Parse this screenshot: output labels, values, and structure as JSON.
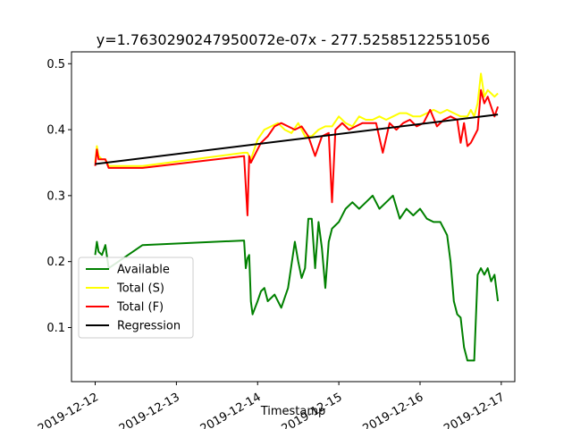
{
  "chart_data": {
    "type": "line",
    "title": "y=1.7630290247950072e-07x - 277.52585122551056",
    "xlabel": "Timestamp",
    "ylabel": "",
    "xlim": [
      "2019-12-11T17:00",
      "2019-12-17T04:00"
    ],
    "ylim": [
      0.018,
      0.518
    ],
    "x_ticks": [
      "2019-12-12",
      "2019-12-13",
      "2019-12-14",
      "2019-12-15",
      "2019-12-16",
      "2019-12-17"
    ],
    "y_ticks": [
      "0.1",
      "0.2",
      "0.3",
      "0.4",
      "0.5"
    ],
    "grid": false,
    "legend": "lower-left",
    "series": [
      {
        "name": "Available",
        "color": "#008000",
        "x": [
          "2019-12-12T00:00",
          "2019-12-12T00:30",
          "2019-12-12T01:00",
          "2019-12-12T02:00",
          "2019-12-12T03:00",
          "2019-12-12T04:00",
          "2019-12-12T14:00",
          "2019-12-13T20:00",
          "2019-12-13T20:30",
          "2019-12-13T21:00",
          "2019-12-13T21:30",
          "2019-12-13T22:00",
          "2019-12-13T22:30",
          "2019-12-14T00:00",
          "2019-12-14T01:00",
          "2019-12-14T02:00",
          "2019-12-14T03:00",
          "2019-12-14T05:00",
          "2019-12-14T07:00",
          "2019-12-14T09:00",
          "2019-12-14T11:00",
          "2019-12-14T12:00",
          "2019-12-14T13:00",
          "2019-12-14T14:00",
          "2019-12-14T15:00",
          "2019-12-14T16:00",
          "2019-12-14T17:00",
          "2019-12-14T18:00",
          "2019-12-14T19:00",
          "2019-12-14T20:00",
          "2019-12-14T21:00",
          "2019-12-14T22:00",
          "2019-12-15T00:00",
          "2019-12-15T02:00",
          "2019-12-15T04:00",
          "2019-12-15T06:00",
          "2019-12-15T08:00",
          "2019-12-15T10:00",
          "2019-12-15T12:00",
          "2019-12-15T14:00",
          "2019-12-15T16:00",
          "2019-12-15T18:00",
          "2019-12-15T20:00",
          "2019-12-15T22:00",
          "2019-12-16T00:00",
          "2019-12-16T02:00",
          "2019-12-16T04:00",
          "2019-12-16T06:00",
          "2019-12-16T08:00",
          "2019-12-16T09:00",
          "2019-12-16T10:00",
          "2019-12-16T11:00",
          "2019-12-16T12:00",
          "2019-12-16T13:00",
          "2019-12-16T14:00",
          "2019-12-16T15:00",
          "2019-12-16T16:00",
          "2019-12-16T17:00",
          "2019-12-16T18:00",
          "2019-12-16T19:00",
          "2019-12-16T20:00",
          "2019-12-16T21:00",
          "2019-12-16T22:00",
          "2019-12-16T23:00"
        ],
        "y": [
          0.21,
          0.23,
          0.215,
          0.21,
          0.225,
          0.19,
          0.225,
          0.232,
          0.19,
          0.205,
          0.21,
          0.14,
          0.12,
          0.14,
          0.155,
          0.16,
          0.14,
          0.15,
          0.13,
          0.16,
          0.23,
          0.2,
          0.175,
          0.19,
          0.265,
          0.265,
          0.19,
          0.26,
          0.22,
          0.16,
          0.23,
          0.25,
          0.26,
          0.28,
          0.29,
          0.28,
          0.29,
          0.3,
          0.28,
          0.29,
          0.3,
          0.265,
          0.28,
          0.27,
          0.28,
          0.265,
          0.26,
          0.26,
          0.24,
          0.2,
          0.14,
          0.12,
          0.115,
          0.07,
          0.05,
          0.05,
          0.05,
          0.18,
          0.19,
          0.18,
          0.19,
          0.17,
          0.18,
          0.14
        ]
      },
      {
        "name": "Total (S)",
        "color": "#ffff00",
        "x": [
          "2019-12-12T00:00",
          "2019-12-12T00:30",
          "2019-12-12T01:00",
          "2019-12-12T02:00",
          "2019-12-12T03:00",
          "2019-12-12T04:00",
          "2019-12-12T14:00",
          "2019-12-13T20:00",
          "2019-12-13T21:00",
          "2019-12-13T22:00",
          "2019-12-14T00:00",
          "2019-12-14T02:00",
          "2019-12-14T04:00",
          "2019-12-14T06:00",
          "2019-12-14T08:00",
          "2019-12-14T10:00",
          "2019-12-14T12:00",
          "2019-12-14T14:00",
          "2019-12-14T16:00",
          "2019-12-14T18:00",
          "2019-12-14T20:00",
          "2019-12-14T22:00",
          "2019-12-15T00:00",
          "2019-12-15T02:00",
          "2019-12-15T04:00",
          "2019-12-15T06:00",
          "2019-12-15T08:00",
          "2019-12-15T10:00",
          "2019-12-15T12:00",
          "2019-12-15T14:00",
          "2019-12-15T16:00",
          "2019-12-15T18:00",
          "2019-12-15T20:00",
          "2019-12-15T22:00",
          "2019-12-16T00:00",
          "2019-12-16T02:00",
          "2019-12-16T04:00",
          "2019-12-16T06:00",
          "2019-12-16T08:00",
          "2019-12-16T10:00",
          "2019-12-16T12:00",
          "2019-12-16T14:00",
          "2019-12-16T15:00",
          "2019-12-16T16:00",
          "2019-12-16T17:00",
          "2019-12-16T18:00",
          "2019-12-16T19:00",
          "2019-12-16T20:00",
          "2019-12-16T21:00",
          "2019-12-16T22:00",
          "2019-12-16T23:00"
        ],
        "y": [
          0.35,
          0.375,
          0.36,
          0.355,
          0.355,
          0.345,
          0.345,
          0.365,
          0.365,
          0.355,
          0.385,
          0.4,
          0.405,
          0.41,
          0.4,
          0.395,
          0.41,
          0.39,
          0.39,
          0.4,
          0.405,
          0.405,
          0.42,
          0.41,
          0.405,
          0.42,
          0.415,
          0.415,
          0.42,
          0.415,
          0.42,
          0.425,
          0.425,
          0.42,
          0.42,
          0.425,
          0.43,
          0.425,
          0.43,
          0.425,
          0.42,
          0.42,
          0.43,
          0.42,
          0.44,
          0.485,
          0.45,
          0.46,
          0.455,
          0.45,
          0.455
        ]
      },
      {
        "name": "Total (F)",
        "color": "#ff0000",
        "x": [
          "2019-12-12T00:00",
          "2019-12-12T00:30",
          "2019-12-12T01:00",
          "2019-12-12T02:00",
          "2019-12-12T03:00",
          "2019-12-12T04:00",
          "2019-12-12T14:00",
          "2019-12-13T20:00",
          "2019-12-13T21:00",
          "2019-12-13T21:30",
          "2019-12-13T22:00",
          "2019-12-14T00:00",
          "2019-12-14T01:00",
          "2019-12-14T03:00",
          "2019-12-14T05:00",
          "2019-12-14T07:00",
          "2019-12-14T09:00",
          "2019-12-14T11:00",
          "2019-12-14T13:00",
          "2019-12-14T15:00",
          "2019-12-14T17:00",
          "2019-12-14T19:00",
          "2019-12-14T21:00",
          "2019-12-14T22:00",
          "2019-12-14T23:00",
          "2019-12-15T01:00",
          "2019-12-15T03:00",
          "2019-12-15T05:00",
          "2019-12-15T07:00",
          "2019-12-15T09:00",
          "2019-12-15T11:00",
          "2019-12-15T13:00",
          "2019-12-15T15:00",
          "2019-12-15T17:00",
          "2019-12-15T19:00",
          "2019-12-15T21:00",
          "2019-12-15T23:00",
          "2019-12-16T01:00",
          "2019-12-16T03:00",
          "2019-12-16T05:00",
          "2019-12-16T07:00",
          "2019-12-16T09:00",
          "2019-12-16T11:00",
          "2019-12-16T12:00",
          "2019-12-16T13:00",
          "2019-12-16T14:00",
          "2019-12-16T15:00",
          "2019-12-16T16:00",
          "2019-12-16T17:00",
          "2019-12-16T18:00",
          "2019-12-16T19:00",
          "2019-12-16T20:00",
          "2019-12-16T21:00",
          "2019-12-16T22:00",
          "2019-12-16T23:00"
        ],
        "y": [
          0.345,
          0.37,
          0.355,
          0.355,
          0.355,
          0.342,
          0.342,
          0.36,
          0.27,
          0.36,
          0.35,
          0.37,
          0.38,
          0.39,
          0.405,
          0.41,
          0.405,
          0.4,
          0.405,
          0.39,
          0.36,
          0.39,
          0.395,
          0.29,
          0.4,
          0.41,
          0.4,
          0.405,
          0.41,
          0.41,
          0.41,
          0.365,
          0.41,
          0.4,
          0.41,
          0.415,
          0.405,
          0.41,
          0.43,
          0.405,
          0.415,
          0.42,
          0.415,
          0.38,
          0.41,
          0.375,
          0.38,
          0.39,
          0.4,
          0.46,
          0.44,
          0.45,
          0.435,
          0.42,
          0.435
        ]
      },
      {
        "name": "Regression",
        "color": "#000000",
        "x": [
          "2019-12-12T00:00",
          "2019-12-16T23:00"
        ],
        "y": [
          0.348,
          0.423
        ]
      }
    ]
  }
}
